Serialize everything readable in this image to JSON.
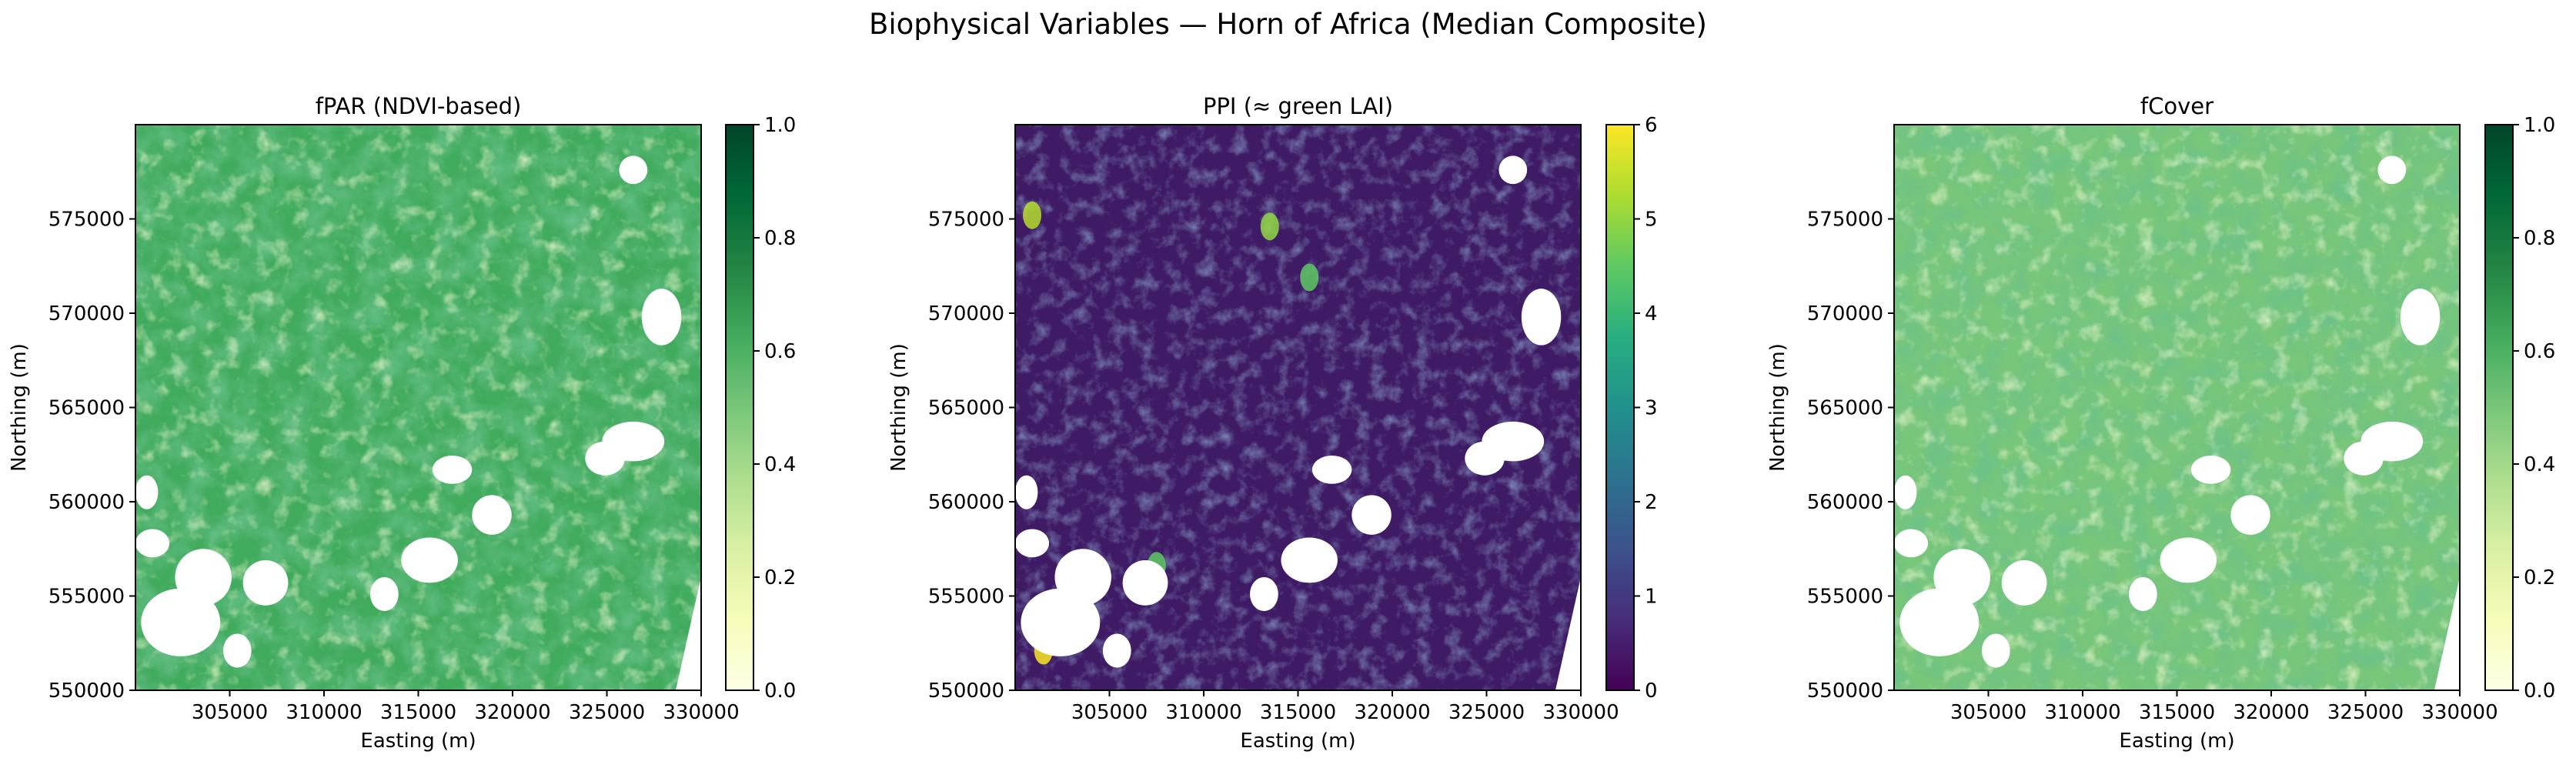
{
  "figure": {
    "title": "Biophysical Variables — Horn of Africa (Median Composite)"
  },
  "chart_data": [
    {
      "type": "heatmap",
      "title": "fPAR (NDVI-based)",
      "xlabel": "Easting (m)",
      "ylabel": "Northing (m)",
      "xlim": [
        300000,
        330000
      ],
      "ylim": [
        550000,
        580000
      ],
      "xticks": [
        "305000",
        "310000",
        "315000",
        "320000",
        "325000",
        "330000"
      ],
      "yticks": [
        "550000",
        "555000",
        "560000",
        "565000",
        "570000",
        "575000"
      ],
      "colormap": "YlGn",
      "colorbar": {
        "range": [
          0.0,
          1.0
        ],
        "ticks": [
          "0.0",
          "0.2",
          "0.4",
          "0.6",
          "0.8",
          "1.0"
        ]
      },
      "colors": {
        "low": "#ffffe5",
        "high": "#00441b"
      }
    },
    {
      "type": "heatmap",
      "title": "PPI (≈ green LAI)",
      "xlabel": "Easting (m)",
      "ylabel": "Northing (m)",
      "xlim": [
        300000,
        330000
      ],
      "ylim": [
        550000,
        580000
      ],
      "xticks": [
        "305000",
        "310000",
        "315000",
        "320000",
        "325000",
        "330000"
      ],
      "yticks": [
        "550000",
        "555000",
        "560000",
        "565000",
        "570000",
        "575000"
      ],
      "colormap": "viridis",
      "colorbar": {
        "range": [
          0,
          6
        ],
        "ticks": [
          "0",
          "1",
          "2",
          "3",
          "4",
          "5",
          "6"
        ]
      },
      "colors": {
        "low": "#440154",
        "high": "#fde725"
      }
    },
    {
      "type": "heatmap",
      "title": "fCover",
      "xlabel": "Easting (m)",
      "ylabel": "Northing (m)",
      "xlim": [
        300000,
        330000
      ],
      "ylim": [
        550000,
        580000
      ],
      "xticks": [
        "305000",
        "310000",
        "315000",
        "320000",
        "325000",
        "330000"
      ],
      "yticks": [
        "550000",
        "555000",
        "560000",
        "565000",
        "570000",
        "575000"
      ],
      "colormap": "YlGn",
      "colorbar": {
        "range": [
          0.0,
          1.0
        ],
        "ticks": [
          "0.0",
          "0.2",
          "0.4",
          "0.6",
          "0.8",
          "1.0"
        ]
      },
      "colors": {
        "low": "#ffffe5",
        "high": "#00441b"
      }
    }
  ]
}
